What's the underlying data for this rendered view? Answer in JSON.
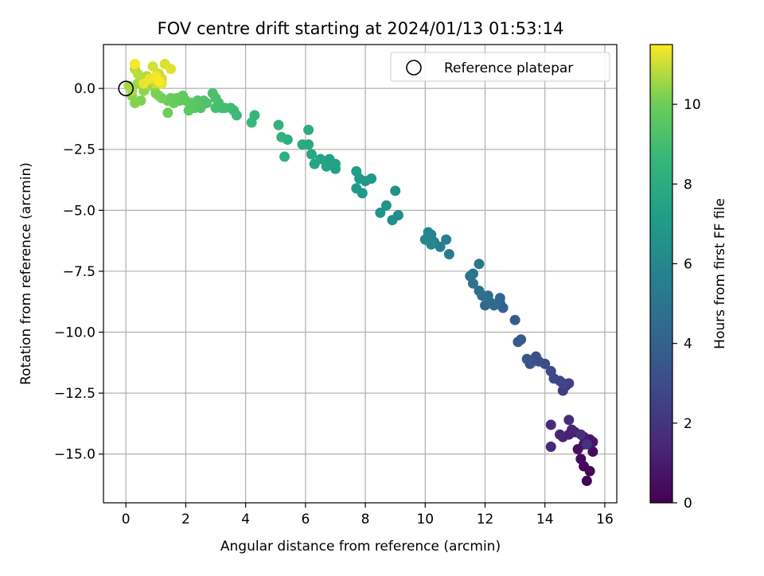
{
  "chart_data": {
    "type": "scatter",
    "title": "FOV centre drift starting at 2024/01/13 01:53:14",
    "xlabel": "Angular distance from reference (arcmin)",
    "ylabel": "Rotation from reference (arcmin)",
    "xlim": [
      -0.75,
      16.4
    ],
    "ylim": [
      -17.0,
      1.8
    ],
    "xticks": [
      0,
      2,
      4,
      6,
      8,
      10,
      12,
      14,
      16
    ],
    "xtick_labels": [
      "0",
      "2",
      "4",
      "6",
      "8",
      "10",
      "12",
      "14",
      "16"
    ],
    "yticks": [
      0.0,
      -2.5,
      -5.0,
      -7.5,
      -10.0,
      -12.5,
      -15.0
    ],
    "ytick_labels": [
      "0.0",
      "−2.5",
      "−5.0",
      "−7.5",
      "−10.0",
      "−12.5",
      "−15.0"
    ],
    "grid": true,
    "colormap": "viridis",
    "colorbar": {
      "label": "Hours from first FF file",
      "range": [
        0,
        11.5
      ],
      "ticks": [
        0,
        2,
        4,
        6,
        8,
        10
      ],
      "tick_labels": [
        "0",
        "2",
        "4",
        "6",
        "8",
        "10"
      ]
    },
    "legend": {
      "position": "upper-right",
      "entries": [
        "Reference platepar"
      ]
    },
    "reference_point": [
      0,
      0
    ],
    "points": [
      [
        15.4,
        -16.1,
        0.05
      ],
      [
        15.5,
        -15.7,
        0.12
      ],
      [
        15.3,
        -15.5,
        0.2
      ],
      [
        15.2,
        -15.2,
        0.3
      ],
      [
        15.6,
        -14.9,
        0.4
      ],
      [
        15.1,
        -14.8,
        0.5
      ],
      [
        15.3,
        -14.6,
        0.6
      ],
      [
        15.5,
        -14.4,
        0.7
      ],
      [
        15.6,
        -14.5,
        0.8
      ],
      [
        15.3,
        -14.3,
        0.9
      ],
      [
        15.0,
        -14.1,
        1.0
      ],
      [
        14.8,
        -14.2,
        1.1
      ],
      [
        14.6,
        -14.3,
        1.2
      ],
      [
        14.9,
        -14.0,
        1.3
      ],
      [
        14.5,
        -14.2,
        1.4
      ],
      [
        14.2,
        -14.7,
        1.5
      ],
      [
        14.2,
        -13.8,
        1.6
      ],
      [
        14.8,
        -13.6,
        1.7
      ],
      [
        15.2,
        -14.2,
        1.8
      ],
      [
        15.4,
        -14.6,
        1.9
      ],
      [
        14.6,
        -12.4,
        2.3
      ],
      [
        14.7,
        -12.2,
        2.4
      ],
      [
        14.8,
        -12.1,
        2.5
      ],
      [
        14.5,
        -12.0,
        2.6
      ],
      [
        14.6,
        -12.1,
        2.7
      ],
      [
        14.3,
        -11.9,
        2.8
      ],
      [
        14.2,
        -11.6,
        2.9
      ],
      [
        14.0,
        -11.3,
        3.0
      ],
      [
        13.8,
        -11.2,
        3.1
      ],
      [
        13.7,
        -11.0,
        3.2
      ],
      [
        13.6,
        -11.2,
        3.3
      ],
      [
        13.5,
        -11.3,
        3.4
      ],
      [
        13.4,
        -11.1,
        3.5
      ],
      [
        13.2,
        -10.3,
        3.6
      ],
      [
        13.1,
        -10.4,
        3.7
      ],
      [
        13.0,
        -9.5,
        3.8
      ],
      [
        12.6,
        -9.0,
        4.0
      ],
      [
        12.5,
        -8.8,
        4.1
      ],
      [
        12.5,
        -8.6,
        4.2
      ],
      [
        12.3,
        -8.9,
        4.3
      ],
      [
        12.2,
        -8.8,
        4.4
      ],
      [
        12.0,
        -8.9,
        4.5
      ],
      [
        11.9,
        -8.5,
        4.6
      ],
      [
        12.1,
        -8.5,
        4.7
      ],
      [
        11.8,
        -8.3,
        4.8
      ],
      [
        11.6,
        -8.0,
        4.9
      ],
      [
        11.5,
        -7.7,
        5.0
      ],
      [
        11.6,
        -7.6,
        5.1
      ],
      [
        11.8,
        -7.2,
        5.2
      ],
      [
        10.8,
        -6.8,
        5.4
      ],
      [
        10.7,
        -6.2,
        5.5
      ],
      [
        10.5,
        -6.5,
        5.6
      ],
      [
        10.3,
        -6.3,
        5.7
      ],
      [
        10.2,
        -6.0,
        5.8
      ],
      [
        10.1,
        -5.9,
        5.9
      ],
      [
        10.0,
        -6.2,
        6.0
      ],
      [
        10.2,
        -6.4,
        6.1
      ],
      [
        9.1,
        -5.2,
        6.3
      ],
      [
        8.9,
        -5.4,
        6.4
      ],
      [
        9.0,
        -4.2,
        6.5
      ],
      [
        8.7,
        -4.8,
        6.6
      ],
      [
        8.5,
        -5.1,
        6.7
      ],
      [
        8.0,
        -3.8,
        6.8
      ],
      [
        8.2,
        -3.7,
        6.9
      ],
      [
        7.9,
        -4.3,
        7.0
      ],
      [
        7.7,
        -4.1,
        7.05
      ],
      [
        7.8,
        -3.7,
        7.1
      ],
      [
        7.7,
        -3.4,
        7.2
      ],
      [
        7.0,
        -3.3,
        7.3
      ],
      [
        7.0,
        -3.1,
        7.35
      ],
      [
        6.8,
        -2.9,
        7.4
      ],
      [
        6.7,
        -3.2,
        7.45
      ],
      [
        6.5,
        -2.9,
        7.5
      ],
      [
        6.3,
        -3.1,
        7.6
      ],
      [
        6.2,
        -2.7,
        7.7
      ],
      [
        6.1,
        -2.3,
        7.8
      ],
      [
        5.9,
        -2.3,
        7.9
      ],
      [
        6.1,
        -1.7,
        8.0
      ],
      [
        5.4,
        -2.1,
        8.1
      ],
      [
        5.3,
        -2.8,
        8.2
      ],
      [
        5.2,
        -2.0,
        8.3
      ],
      [
        5.1,
        -1.5,
        8.4
      ],
      [
        4.3,
        -1.1,
        8.6
      ],
      [
        4.2,
        -1.4,
        8.7
      ],
      [
        3.7,
        -1.1,
        8.8
      ],
      [
        3.6,
        -0.9,
        8.85
      ],
      [
        3.5,
        -0.8,
        8.9
      ],
      [
        3.3,
        -0.8,
        8.95
      ],
      [
        3.2,
        -0.8,
        9.0
      ],
      [
        3.1,
        -0.6,
        9.05
      ],
      [
        3.0,
        -0.8,
        9.1
      ],
      [
        2.9,
        -0.2,
        9.15
      ],
      [
        3.0,
        -0.4,
        9.2
      ],
      [
        2.7,
        -0.6,
        9.3
      ],
      [
        2.6,
        -0.5,
        9.35
      ],
      [
        2.5,
        -0.8,
        9.4
      ],
      [
        2.4,
        -0.5,
        9.45
      ],
      [
        2.3,
        -0.8,
        9.5
      ],
      [
        2.2,
        -0.6,
        9.55
      ],
      [
        2.1,
        -0.9,
        9.6
      ],
      [
        2.0,
        -0.5,
        9.65
      ],
      [
        1.9,
        -0.3,
        9.7
      ],
      [
        1.8,
        -0.5,
        9.75
      ],
      [
        1.7,
        -0.4,
        9.8
      ],
      [
        1.6,
        -0.6,
        9.85
      ],
      [
        1.5,
        -0.4,
        9.9
      ],
      [
        1.4,
        -0.5,
        9.95
      ],
      [
        1.4,
        -1.0,
        10.0
      ],
      [
        1.2,
        -0.4,
        10.1
      ],
      [
        1.1,
        -0.3,
        10.15
      ],
      [
        1.0,
        -0.2,
        10.2
      ],
      [
        0.5,
        -0.5,
        10.25
      ],
      [
        0.3,
        -0.6,
        10.3
      ],
      [
        0.2,
        -0.3,
        10.35
      ],
      [
        0.6,
        -0.1,
        10.4
      ],
      [
        0.8,
        0.1,
        10.5
      ],
      [
        0.4,
        0.2,
        10.55
      ],
      [
        0.1,
        0.1,
        10.6
      ],
      [
        0.2,
        -0.1,
        10.65
      ],
      [
        0.5,
        0.3,
        10.7
      ],
      [
        0.7,
        0.5,
        10.75
      ],
      [
        0.3,
        0.8,
        10.8
      ],
      [
        0.4,
        0.6,
        10.85
      ],
      [
        0.9,
        0.4,
        10.9
      ],
      [
        1.0,
        0.2,
        10.95
      ],
      [
        1.1,
        0.6,
        11.0
      ],
      [
        1.2,
        0.4,
        11.05
      ],
      [
        0.9,
        0.9,
        11.1
      ],
      [
        1.3,
        1.0,
        11.15
      ],
      [
        1.5,
        0.8,
        11.2
      ],
      [
        1.2,
        0.2,
        11.25
      ],
      [
        0.6,
        0.2,
        11.3
      ],
      [
        0.8,
        0.4,
        11.35
      ],
      [
        1.0,
        0.5,
        11.4
      ],
      [
        0.3,
        1.0,
        11.45
      ],
      [
        1.1,
        0.3,
        11.5
      ]
    ]
  }
}
